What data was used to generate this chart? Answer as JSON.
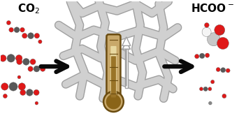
{
  "background_color": "#ffffff",
  "fig_width": 3.42,
  "fig_height": 1.89,
  "co2_label": "CO$_2$",
  "hcoo_label": "HCOO$^-$",
  "arrow_color": "#0a0a0a",
  "fiber_color": "#d0d0d0",
  "fiber_edge": "#a0a0a0",
  "thermo_outer": "#c8a86a",
  "thermo_edge": "#6b4c10",
  "thermo_inner_empty": "#e8d8a0",
  "thermo_mercury": "#9a7428",
  "thermo_bulb_fill": "#8a6418",
  "red_color": "#e01818",
  "gray_dark": "#585858",
  "gray_med": "#888888",
  "gray_light": "#c8c8c8",
  "white_mol": "#f5f5f5",
  "fibers": [
    [
      [
        2.8,
        5.8
      ],
      [
        3.5,
        5.0
      ],
      [
        4.2,
        5.3
      ],
      [
        5.0,
        5.1
      ],
      [
        5.8,
        5.4
      ],
      [
        6.5,
        5.0
      ],
      [
        7.2,
        5.5
      ]
    ],
    [
      [
        2.5,
        4.5
      ],
      [
        3.3,
        4.0
      ],
      [
        4.0,
        4.3
      ],
      [
        5.0,
        4.0
      ],
      [
        6.0,
        4.3
      ],
      [
        7.0,
        4.0
      ],
      [
        7.6,
        4.4
      ]
    ],
    [
      [
        2.7,
        3.2
      ],
      [
        3.5,
        3.5
      ],
      [
        4.3,
        3.1
      ],
      [
        5.0,
        3.4
      ],
      [
        5.8,
        3.0
      ],
      [
        6.8,
        3.4
      ],
      [
        7.5,
        3.0
      ]
    ],
    [
      [
        2.8,
        2.0
      ],
      [
        3.6,
        2.4
      ],
      [
        4.4,
        2.0
      ],
      [
        5.0,
        2.2
      ],
      [
        5.8,
        1.9
      ],
      [
        6.8,
        2.2
      ],
      [
        7.4,
        1.8
      ]
    ],
    [
      [
        3.0,
        5.5
      ],
      [
        3.4,
        4.5
      ],
      [
        3.2,
        3.5
      ],
      [
        3.6,
        2.5
      ],
      [
        3.4,
        1.5
      ]
    ],
    [
      [
        4.2,
        5.6
      ],
      [
        4.5,
        4.6
      ],
      [
        4.3,
        3.6
      ],
      [
        4.6,
        2.5
      ],
      [
        4.4,
        1.4
      ]
    ],
    [
      [
        5.8,
        5.5
      ],
      [
        6.0,
        4.5
      ],
      [
        5.8,
        3.5
      ],
      [
        6.1,
        2.5
      ],
      [
        5.9,
        1.5
      ]
    ],
    [
      [
        6.8,
        5.4
      ],
      [
        7.0,
        4.4
      ],
      [
        6.8,
        3.3
      ],
      [
        7.2,
        2.3
      ],
      [
        7.0,
        1.4
      ]
    ]
  ]
}
